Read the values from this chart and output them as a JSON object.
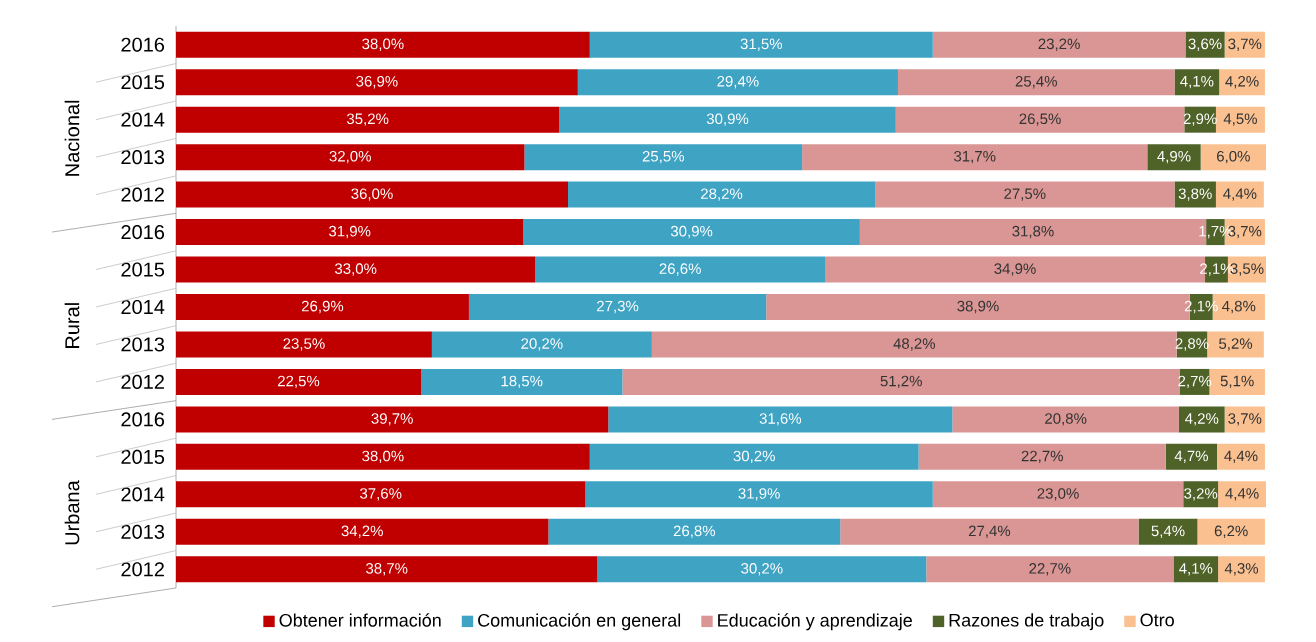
{
  "chart_data": {
    "type": "bar",
    "orientation": "horizontal",
    "stacked": true,
    "categories": [
      "2016",
      "2015",
      "2014",
      "2013",
      "2012",
      "2016",
      "2015",
      "2014",
      "2013",
      "2012",
      "2016",
      "2015",
      "2014",
      "2013",
      "2012"
    ],
    "data_labels": true,
    "tick_labels": "y",
    "legend": "bottom",
    "grid": false,
    "annotations": [
      "Nacional",
      "Rural",
      "Urbana"
    ],
    "series": [
      {
        "name": "Obtener información",
        "color": "#c00000",
        "values": [
          38.0,
          36.9,
          35.2,
          32.0,
          36.0,
          31.9,
          33.0,
          26.9,
          23.5,
          22.5,
          39.7,
          38.0,
          37.6,
          34.2,
          38.7
        ],
        "value_labels": [
          "38,0%",
          "36,9%",
          "35,2%",
          "32,0%",
          "36,0%",
          "31,9%",
          "33,0%",
          "26,9%",
          "23,5%",
          "22,5%",
          "39,7%",
          "38,0%",
          "37,6%",
          "34,2%",
          "38,7%"
        ]
      },
      {
        "name": "Comunicación en general",
        "color": "#3fa3c4",
        "values": [
          31.5,
          29.4,
          30.9,
          25.5,
          28.2,
          30.9,
          26.6,
          27.3,
          20.2,
          18.5,
          31.6,
          30.2,
          31.9,
          26.8,
          30.2
        ],
        "value_labels": [
          "31,5%",
          "29,4%",
          "30,9%",
          "25,5%",
          "28,2%",
          "30,9%",
          "26,6%",
          "27,3%",
          "20,2%",
          "18,5%",
          "31,6%",
          "30,2%",
          "31,9%",
          "26,8%",
          "30,2%"
        ]
      },
      {
        "name": "Educación y aprendizaje",
        "color": "#d99694",
        "values": [
          23.2,
          25.4,
          26.5,
          31.7,
          27.5,
          31.8,
          34.9,
          38.9,
          48.2,
          51.2,
          20.8,
          22.7,
          23.0,
          27.4,
          22.7
        ],
        "value_labels": [
          "23,2%",
          "25,4%",
          "26,5%",
          "31,7%",
          "27,5%",
          "31,8%",
          "34,9%",
          "38,9%",
          "48,2%",
          "51,2%",
          "20,8%",
          "22,7%",
          "23,0%",
          "27,4%",
          "22,7%"
        ]
      },
      {
        "name": "Razones de trabajo",
        "color": "#4f6228",
        "values": [
          3.6,
          4.1,
          2.9,
          4.9,
          3.8,
          1.7,
          2.1,
          2.1,
          2.8,
          2.7,
          4.2,
          4.7,
          3.2,
          5.4,
          4.1
        ],
        "value_labels": [
          "3,6%",
          "4,1%",
          "2,9%",
          "4,9%",
          "3,8%",
          "1,7%",
          "2,1%",
          "2,1%",
          "2,8%",
          "2,7%",
          "4,2%",
          "4,7%",
          "3,2%",
          "5,4%",
          "4,1%"
        ]
      },
      {
        "name": "Otro",
        "color": "#fac090",
        "values": [
          3.7,
          4.2,
          4.5,
          6.0,
          4.4,
          3.7,
          3.5,
          4.8,
          5.2,
          5.1,
          3.7,
          4.4,
          4.4,
          6.2,
          4.3
        ],
        "value_labels": [
          "3,7%",
          "4,2%",
          "4,5%",
          "6,0%",
          "4,4%",
          "3,7%",
          "3,5%",
          "4,8%",
          "5,2%",
          "5,1%",
          "3,7%",
          "4,4%",
          "4,4%",
          "6,2%",
          "4,3%"
        ]
      }
    ]
  }
}
